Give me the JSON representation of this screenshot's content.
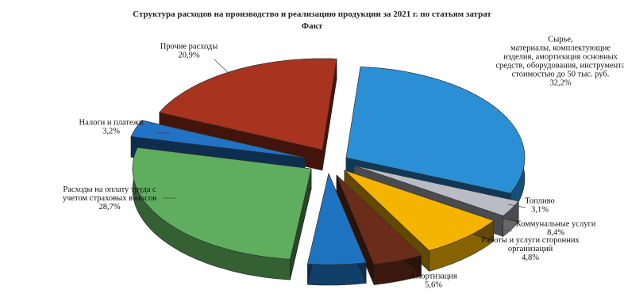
{
  "chart_data": {
    "type": "pie",
    "title": "Структура расходов на производство и реализацию продукции за 2021 г. по статьям затрат",
    "subtitle": "Факт",
    "slices": [
      {
        "label": [
          "Сырье,",
          "материалы, комплектующие",
          "изделия, амортизация основных",
          "средств, оборудования, инструмента",
          "стоимостью до 50 тыс. руб."
        ],
        "value_label": "32,2%",
        "value": 32.2,
        "color": "#2b8fd6"
      },
      {
        "label": [
          "Топливо"
        ],
        "value_label": "3,1%",
        "value": 3.1,
        "color": "#b9bcc3"
      },
      {
        "label": [
          "Коммунальные услуги"
        ],
        "value_label": "8,4%",
        "value": 8.4,
        "color": "#f5b400"
      },
      {
        "label": [
          "Работы и услуги сторонних",
          "организаций"
        ],
        "value_label": "4,8%",
        "value": 4.8,
        "color": "#6b2c1a"
      },
      {
        "label": [
          "Амортизация"
        ],
        "value_label": "5,6%",
        "value": 5.6,
        "color": "#1e73c0"
      },
      {
        "label": [
          "Расходы на оплату труда с",
          "учетом страховых взносов"
        ],
        "value_label": "28,7%",
        "value": 28.7,
        "color": "#5fae5f"
      },
      {
        "label": [
          "Налоги и платежи"
        ],
        "value_label": "3,2%",
        "value": 3.2,
        "color": "#2272c5"
      },
      {
        "label": [
          "Прочие расходы"
        ],
        "value_label": "20,9%",
        "value": 20.9,
        "color": "#a8331f"
      }
    ],
    "legend": "none",
    "exploded": true
  }
}
